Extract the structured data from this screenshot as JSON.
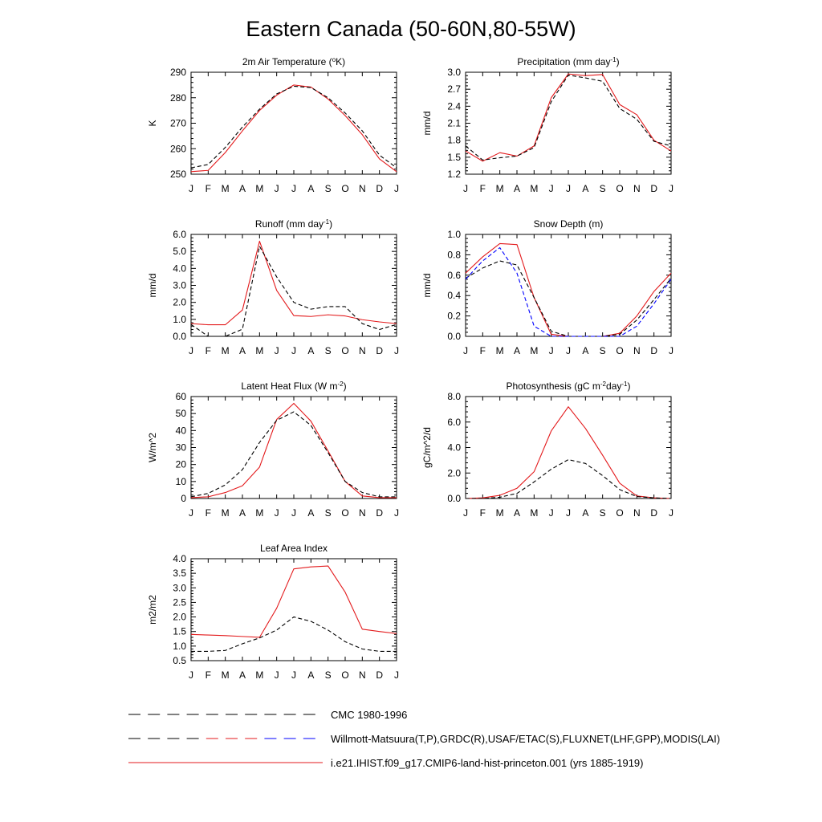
{
  "title": "Eastern Canada (50-60N,80-55W)",
  "months": [
    "J",
    "F",
    "M",
    "A",
    "M",
    "J",
    "J",
    "A",
    "S",
    "O",
    "N",
    "D",
    "J"
  ],
  "legend": [
    {
      "label": "CMC 1980-1996",
      "style": "dashed",
      "colors": [
        "#000000"
      ]
    },
    {
      "label": "Willmott-Matsuura(T,P),GRDC(R),USAF/ETAC(S),FLUXNET(LHF,GPP),MODIS(LAI)",
      "style": "dashed",
      "colors": [
        "#000000",
        "#e31a1c",
        "#0000ff"
      ]
    },
    {
      "label": "i.e21.IHIST.f09_g17.CMIP6-land-hist-princeton.001 (yrs 1885-1919)",
      "style": "solid",
      "colors": [
        "#e31a1c"
      ]
    }
  ],
  "chart_data": [
    {
      "type": "line",
      "title": "2m Air Temperature (°K)",
      "title_parts": [
        "2m Air Temperature (",
        "o",
        "K)"
      ],
      "ylabel": "K",
      "ylim": [
        250,
        290
      ],
      "yticks": [
        250,
        260,
        270,
        280,
        290
      ],
      "ytick_labels": [
        "250",
        "260",
        "270",
        "280",
        "290"
      ],
      "categories": [
        "J",
        "F",
        "M",
        "A",
        "M",
        "J",
        "J",
        "A",
        "S",
        "O",
        "N",
        "D",
        "J"
      ],
      "series": [
        {
          "name": "i.e21.IHIST.f09_g17.CMIP6-land-hist-princeton.001 (yrs 1885-1919)",
          "color": "#e31a1c",
          "dash": "solid",
          "values": [
            251.0,
            251.5,
            258.5,
            267.0,
            275.0,
            281.0,
            285.0,
            284.2,
            279.5,
            273.0,
            265.5,
            256.0,
            251.0
          ]
        },
        {
          "name": "CMC 1980-1996",
          "color": "#000000",
          "dash": "dashed",
          "values": [
            252.5,
            253.8,
            260.5,
            268.5,
            275.5,
            281.5,
            284.5,
            284.0,
            280.0,
            274.0,
            267.0,
            257.5,
            252.5
          ]
        }
      ]
    },
    {
      "type": "line",
      "title": "Precipitation (mm day-1)",
      "title_parts": [
        "Precipitation (mm day",
        "-1",
        ")"
      ],
      "ylabel": "mm/d",
      "ylim": [
        1.2,
        3.0
      ],
      "yticks": [
        1.2,
        1.5,
        1.8,
        2.1,
        2.4,
        2.7,
        3.0
      ],
      "ytick_labels": [
        "1.2",
        "1.5",
        "1.8",
        "2.1",
        "2.4",
        "2.7",
        "3.0"
      ],
      "categories": [
        "J",
        "F",
        "M",
        "A",
        "M",
        "J",
        "J",
        "A",
        "S",
        "O",
        "N",
        "D",
        "J"
      ],
      "series": [
        {
          "name": "i.e21.IHIST.f09_g17.CMIP6-land-hist-princeton.001 (yrs 1885-1919)",
          "color": "#e31a1c",
          "dash": "solid",
          "values": [
            1.61,
            1.43,
            1.58,
            1.52,
            1.7,
            2.55,
            2.97,
            2.94,
            2.96,
            2.43,
            2.25,
            1.8,
            1.61
          ]
        },
        {
          "name": "Willmott-Matsuura(T,P),GRDC(R),USAF/ETAC(S),FLUXNET(LHF,GPP),MODIS(LAI)",
          "color": "#000000",
          "dash": "dashed",
          "values": [
            1.7,
            1.45,
            1.49,
            1.52,
            1.67,
            2.48,
            2.95,
            2.9,
            2.84,
            2.36,
            2.17,
            1.78,
            1.7
          ]
        }
      ]
    },
    {
      "type": "line",
      "title": "Runoff (mm day-1)",
      "title_parts": [
        "Runoff (mm day",
        "-1",
        ")"
      ],
      "ylabel": "mm/d",
      "ylim": [
        0,
        6
      ],
      "yticks": [
        0,
        1,
        2,
        3,
        4,
        5,
        6
      ],
      "ytick_labels": [
        "0.0",
        "1.0",
        "2.0",
        "3.0",
        "4.0",
        "5.0",
        "6.0"
      ],
      "categories": [
        "J",
        "F",
        "M",
        "A",
        "M",
        "J",
        "J",
        "A",
        "S",
        "O",
        "N",
        "D",
        "J"
      ],
      "series": [
        {
          "name": "i.e21.IHIST.f09_g17.CMIP6-land-hist-princeton.001 (yrs 1885-1919)",
          "color": "#e31a1c",
          "dash": "solid",
          "values": [
            0.75,
            0.68,
            0.68,
            1.55,
            5.6,
            2.7,
            1.22,
            1.17,
            1.27,
            1.2,
            0.98,
            0.85,
            0.75
          ]
        },
        {
          "name": "Willmott-Matsuura(T,P),GRDC(R),USAF/ETAC(S),FLUXNET(LHF,GPP),MODIS(LAI)",
          "color": "#000000",
          "dash": "dashed",
          "values": [
            0.7,
            0.0,
            0.0,
            0.42,
            5.3,
            3.5,
            2.0,
            1.6,
            1.75,
            1.75,
            0.75,
            0.4,
            0.7
          ]
        }
      ]
    },
    {
      "type": "line",
      "title": "Snow Depth (m)",
      "title_parts": [
        "Snow Depth (m)"
      ],
      "ylabel": "mm/d",
      "ylim": [
        0,
        1
      ],
      "yticks": [
        0,
        0.2,
        0.4,
        0.6,
        0.8,
        1.0
      ],
      "ytick_labels": [
        "0.0",
        "0.2",
        "0.4",
        "0.6",
        "0.8",
        "1.0"
      ],
      "categories": [
        "J",
        "F",
        "M",
        "A",
        "M",
        "J",
        "J",
        "A",
        "S",
        "O",
        "N",
        "D",
        "J"
      ],
      "series": [
        {
          "name": "i.e21.IHIST.f09_g17.CMIP6-land-hist-princeton.001 (yrs 1885-1919)",
          "color": "#e31a1c",
          "dash": "solid",
          "values": [
            0.62,
            0.78,
            0.91,
            0.9,
            0.38,
            0.02,
            0.0,
            0.0,
            0.0,
            0.03,
            0.2,
            0.44,
            0.62
          ]
        },
        {
          "name": "CMC 1980-1996",
          "color": "#000000",
          "dash": "dashed",
          "values": [
            0.57,
            0.67,
            0.74,
            0.7,
            0.38,
            0.05,
            0.0,
            0.0,
            0.0,
            0.02,
            0.16,
            0.36,
            0.57
          ]
        },
        {
          "name": "Willmott-Matsuura(T,P),GRDC(R),USAF/ETAC(S),FLUXNET(LHF,GPP),MODIS(LAI)",
          "color": "#0000ff",
          "dash": "dashed",
          "values": [
            0.56,
            0.74,
            0.87,
            0.62,
            0.1,
            0.0,
            0.0,
            0.0,
            0.0,
            0.0,
            0.1,
            0.32,
            0.56
          ]
        }
      ]
    },
    {
      "type": "line",
      "title": "Latent Heat Flux (W m-2)",
      "title_parts": [
        "Latent Heat Flux (W m",
        "-2",
        ")"
      ],
      "ylabel": "W/m^2",
      "ylim": [
        0,
        60
      ],
      "yticks": [
        0,
        10,
        20,
        30,
        40,
        50,
        60
      ],
      "ytick_labels": [
        "0",
        "10",
        "20",
        "30",
        "40",
        "50",
        "60"
      ],
      "categories": [
        "J",
        "F",
        "M",
        "A",
        "M",
        "J",
        "J",
        "A",
        "S",
        "O",
        "N",
        "D",
        "J"
      ],
      "series": [
        {
          "name": "i.e21.IHIST.f09_g17.CMIP6-land-hist-princeton.001 (yrs 1885-1919)",
          "color": "#e31a1c",
          "dash": "solid",
          "values": [
            0.5,
            1.0,
            3.5,
            7.5,
            18.5,
            46.5,
            56.0,
            45.5,
            28.0,
            10.0,
            1.5,
            0.5,
            0.5
          ]
        },
        {
          "name": "Willmott-Matsuura(T,P),GRDC(R),USAF/ETAC(S),FLUXNET(LHF,GPP),MODIS(LAI)",
          "color": "#000000",
          "dash": "dashed",
          "values": [
            1.0,
            3.0,
            8.0,
            17.0,
            33.0,
            46.0,
            51.0,
            43.0,
            27.0,
            10.0,
            3.5,
            1.0,
            1.0
          ]
        }
      ]
    },
    {
      "type": "line",
      "title": "Photosynthesis (gC m-2day-1)",
      "title_parts": [
        "Photosynthesis (gC m",
        "-2",
        "day",
        "-1",
        ")"
      ],
      "ylabel": "gC/m^2/d",
      "ylim": [
        0,
        8
      ],
      "yticks": [
        0,
        2,
        4,
        6,
        8
      ],
      "ytick_labels": [
        "0.0",
        "2.0",
        "4.0",
        "6.0",
        "8.0"
      ],
      "categories": [
        "J",
        "F",
        "M",
        "A",
        "M",
        "J",
        "J",
        "A",
        "S",
        "O",
        "N",
        "D",
        "J"
      ],
      "series": [
        {
          "name": "i.e21.IHIST.f09_g17.CMIP6-land-hist-princeton.001 (yrs 1885-1919)",
          "color": "#e31a1c",
          "dash": "solid",
          "values": [
            0.0,
            0.05,
            0.25,
            0.8,
            2.1,
            5.3,
            7.2,
            5.5,
            3.4,
            1.2,
            0.2,
            0.05,
            0.0
          ]
        },
        {
          "name": "Willmott-Matsuura(T,P),GRDC(R),USAF/ETAC(S),FLUXNET(LHF,GPP),MODIS(LAI)",
          "color": "#000000",
          "dash": "dashed",
          "values": [
            0.0,
            0.0,
            0.1,
            0.4,
            1.3,
            2.3,
            3.05,
            2.75,
            1.8,
            0.7,
            0.15,
            0.05,
            0.0
          ]
        }
      ]
    },
    {
      "type": "line",
      "title": "Leaf Area Index",
      "title_parts": [
        "Leaf Area Index"
      ],
      "ylabel": "m2/m2",
      "ylim": [
        0.5,
        4.0
      ],
      "yticks": [
        0.5,
        1.0,
        1.5,
        2.0,
        2.5,
        3.0,
        3.5,
        4.0
      ],
      "ytick_labels": [
        "0.5",
        "1.0",
        "1.5",
        "2.0",
        "2.5",
        "3.0",
        "3.5",
        "4.0"
      ],
      "categories": [
        "J",
        "F",
        "M",
        "A",
        "M",
        "J",
        "J",
        "A",
        "S",
        "O",
        "N",
        "D",
        "J"
      ],
      "series": [
        {
          "name": "i.e21.IHIST.f09_g17.CMIP6-land-hist-princeton.001 (yrs 1885-1919)",
          "color": "#e31a1c",
          "dash": "solid",
          "values": [
            1.4,
            1.38,
            1.36,
            1.33,
            1.3,
            2.3,
            3.65,
            3.72,
            3.75,
            2.85,
            1.58,
            1.5,
            1.43
          ]
        },
        {
          "name": "Willmott-Matsuura(T,P),GRDC(R),USAF/ETAC(S),FLUXNET(LHF,GPP),MODIS(LAI)",
          "color": "#000000",
          "dash": "dashed",
          "values": [
            0.82,
            0.82,
            0.85,
            1.08,
            1.28,
            1.55,
            2.0,
            1.85,
            1.55,
            1.15,
            0.9,
            0.82,
            0.82
          ]
        }
      ]
    }
  ]
}
